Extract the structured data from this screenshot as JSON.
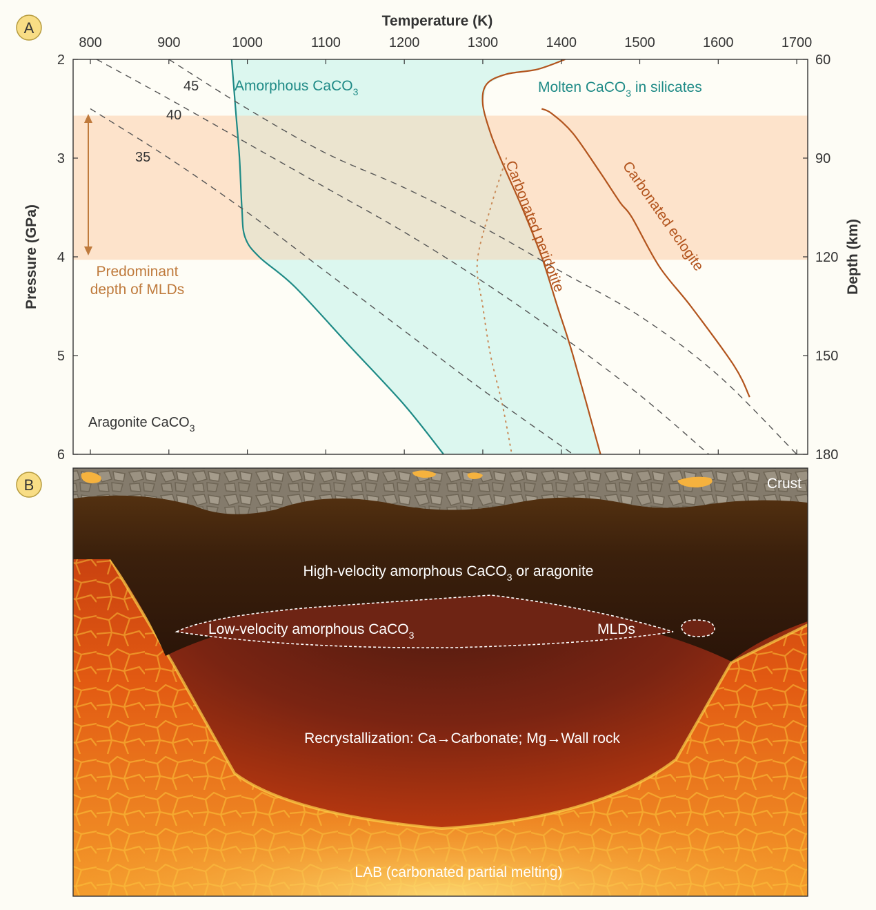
{
  "panel_a_label": "A",
  "panel_b_label": "B",
  "colors": {
    "amorphous_fill": "#dcf7ef",
    "mld_band": "#fde3cb",
    "teal": "#1e8a86",
    "rust": "#b2541d",
    "annotation": "#bf7a3c",
    "geotherm": "#555555"
  },
  "chart_data": {
    "type": "line",
    "xlabel": "Temperature (K)",
    "ylabel": "Pressure (GPa)",
    "y2label": "Depth (km)",
    "xlim": [
      778,
      1714
    ],
    "ylim": [
      2,
      6
    ],
    "y_inverted": true,
    "x_ticks": [
      800,
      900,
      1000,
      1100,
      1200,
      1300,
      1400,
      1500,
      1600,
      1700
    ],
    "y_ticks": [
      2,
      3,
      4,
      5,
      6
    ],
    "y2_ticks": [
      {
        "pressure": 2,
        "label": "60"
      },
      {
        "pressure": 3,
        "label": "90"
      },
      {
        "pressure": 4,
        "label": "120"
      },
      {
        "pressure": 5,
        "label": "150"
      },
      {
        "pressure": 6,
        "label": "180"
      }
    ],
    "grid": false,
    "shaded_band": {
      "pressure_range": [
        2.57,
        4.03
      ],
      "label": [
        "Predominant",
        "depth of MLDs"
      ]
    },
    "series": [
      {
        "name": "",
        "style": "teal-solid",
        "points": [
          [
            980,
            2.0
          ],
          [
            985,
            2.5
          ],
          [
            990,
            3.0
          ],
          [
            993,
            3.5
          ],
          [
            997,
            3.8
          ],
          [
            1015,
            4.0
          ],
          [
            1060,
            4.3
          ],
          [
            1130,
            4.9
          ],
          [
            1200,
            5.5
          ],
          [
            1250,
            6.0
          ]
        ]
      },
      {
        "name": "",
        "style": "rust-solid",
        "points": [
          [
            1405,
            2.0
          ],
          [
            1370,
            2.1
          ],
          [
            1330,
            2.15
          ],
          [
            1305,
            2.25
          ],
          [
            1300,
            2.45
          ],
          [
            1310,
            2.75
          ],
          [
            1325,
            3.05
          ],
          [
            1350,
            3.5
          ],
          [
            1375,
            4.0
          ],
          [
            1395,
            4.5
          ],
          [
            1415,
            5.0
          ],
          [
            1450,
            6.0
          ]
        ]
      },
      {
        "name": "",
        "style": "rust-solid",
        "points": [
          [
            1375,
            2.5
          ],
          [
            1388,
            2.55
          ],
          [
            1415,
            2.75
          ],
          [
            1450,
            3.15
          ],
          [
            1475,
            3.45
          ],
          [
            1490,
            3.6
          ],
          [
            1525,
            4.1
          ],
          [
            1565,
            4.5
          ],
          [
            1620,
            5.1
          ],
          [
            1640,
            5.42
          ]
        ]
      },
      {
        "name": "",
        "style": "rust-dotted",
        "points": [
          [
            1330,
            3.0
          ],
          [
            1310,
            3.5
          ],
          [
            1293,
            4.05
          ],
          [
            1300,
            4.5
          ],
          [
            1310,
            5.0
          ],
          [
            1325,
            5.5
          ],
          [
            1337,
            6.0
          ]
        ]
      },
      {
        "name": "45",
        "style": "dash",
        "points": [
          [
            900,
            2.0
          ],
          [
            1000,
            2.5
          ],
          [
            1100,
            2.95
          ],
          [
            1200,
            3.3
          ],
          [
            1300,
            3.7
          ],
          [
            1400,
            4.15
          ],
          [
            1500,
            4.6
          ],
          [
            1600,
            5.2
          ],
          [
            1700,
            6.0
          ]
        ]
      },
      {
        "name": "40",
        "style": "dash",
        "points": [
          [
            808,
            2.0
          ],
          [
            900,
            2.4
          ],
          [
            1000,
            2.85
          ],
          [
            1100,
            3.3
          ],
          [
            1200,
            3.75
          ],
          [
            1300,
            4.25
          ],
          [
            1400,
            4.8
          ],
          [
            1500,
            5.4
          ],
          [
            1588,
            6.0
          ]
        ]
      },
      {
        "name": "35",
        "style": "dash",
        "points": [
          [
            800,
            2.5
          ],
          [
            900,
            3.0
          ],
          [
            1000,
            3.55
          ],
          [
            1100,
            4.15
          ],
          [
            1200,
            4.75
          ],
          [
            1300,
            5.35
          ],
          [
            1415,
            6.0
          ]
        ]
      }
    ],
    "amorphous_region": [
      [
        980,
        2.0
      ],
      [
        1405,
        2.0
      ],
      [
        1370,
        2.1
      ],
      [
        1330,
        2.15
      ],
      [
        1305,
        2.25
      ],
      [
        1300,
        2.45
      ],
      [
        1310,
        2.75
      ],
      [
        1325,
        3.05
      ],
      [
        1350,
        3.5
      ],
      [
        1375,
        4.0
      ],
      [
        1395,
        4.5
      ],
      [
        1415,
        5.0
      ],
      [
        1450,
        6.0
      ],
      [
        1250,
        6.0
      ],
      [
        1200,
        5.5
      ],
      [
        1130,
        4.9
      ],
      [
        1060,
        4.3
      ],
      [
        1015,
        4.0
      ],
      [
        997,
        3.8
      ],
      [
        993,
        3.5
      ],
      [
        990,
        3.0
      ],
      [
        985,
        2.5
      ]
    ],
    "annotations": {
      "amorphous": {
        "text": "Amorphous CaCO",
        "sub": "3"
      },
      "molten": {
        "text": "Molten CaCO",
        "sub": "3",
        "after": " in silicates"
      },
      "aragonite": {
        "text": "Aragonite CaCO",
        "sub": "3"
      },
      "peridotite": "Carbonated peridotite",
      "eclogite": "Carbonated eclogite",
      "isotherm_45": "45",
      "isotherm_40": "40",
      "isotherm_35": "35"
    }
  },
  "panel_b": {
    "crust": "Crust",
    "high_velocity": {
      "text": "High-velocity amorphous CaCO",
      "sub": "3",
      "after": " or aragonite"
    },
    "low_velocity": {
      "text": "Low-velocity amorphous CaCO",
      "sub": "3"
    },
    "mlds": "MLDs",
    "recrystallization": "Recrystallization: Ca→Carbonate; Mg→Wall rock",
    "lab": "LAB (carbonated partial melting)"
  }
}
